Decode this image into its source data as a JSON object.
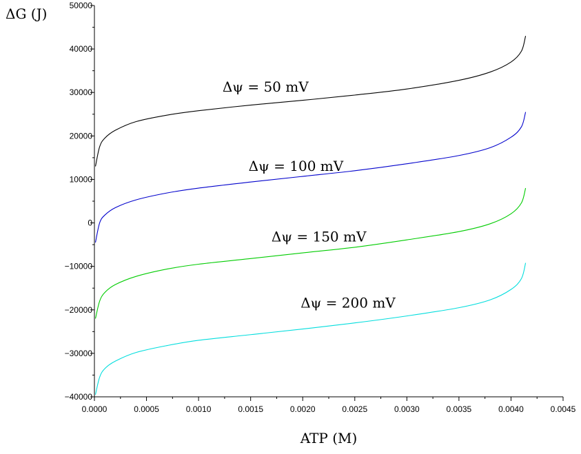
{
  "chart_data": {
    "type": "line",
    "xlabel": "ATP (M)",
    "ylabel": "ΔG (J)",
    "xlim": [
      0,
      0.0045
    ],
    "ylim": [
      -40000,
      50000
    ],
    "x_ticks": [
      0,
      0.0005,
      0.001,
      0.0015,
      0.002,
      0.0025,
      0.003,
      0.0035,
      0.004,
      0.0045
    ],
    "x_tick_labels": [
      "0.0000",
      "0.0005",
      "0.0010",
      "0.0015",
      "0.0020",
      "0.0025",
      "0.0030",
      "0.0035",
      "0.0040",
      "0.0045"
    ],
    "y_ticks": [
      -40000,
      -30000,
      -20000,
      -10000,
      0,
      10000,
      20000,
      30000,
      40000,
      50000
    ],
    "y_tick_labels": [
      "−40000",
      "−30000",
      "−20000",
      "−10000",
      "0",
      "10000",
      "20000",
      "30000",
      "40000",
      "50000"
    ],
    "grid": false,
    "series": [
      {
        "name": "Δψ = 50 mV",
        "color": "#000000",
        "x": [
          1e-05,
          5e-05,
          0.0001,
          0.0002,
          0.0004,
          0.0007,
          0.001,
          0.0015,
          0.002,
          0.0025,
          0.003,
          0.0035,
          0.0038,
          0.004,
          0.0041,
          0.00414
        ],
        "y": [
          13000,
          17500,
          19500,
          21300,
          23300,
          24800,
          25800,
          27100,
          28200,
          29400,
          30800,
          32800,
          34700,
          37000,
          39500,
          43000
        ]
      },
      {
        "name": "Δψ = 100 mV",
        "color": "#0000cc",
        "x": [
          1e-05,
          5e-05,
          0.0001,
          0.0002,
          0.0004,
          0.0007,
          0.001,
          0.0015,
          0.002,
          0.0025,
          0.003,
          0.0035,
          0.0038,
          0.004,
          0.0041,
          0.00414
        ],
        "y": [
          -4500,
          0,
          1800,
          3500,
          5300,
          6900,
          8000,
          9400,
          10700,
          12000,
          13600,
          15500,
          17300,
          19700,
          22100,
          25500
        ]
      },
      {
        "name": "Δψ = 150 mV",
        "color": "#00cc00",
        "x": [
          1e-05,
          5e-05,
          0.0001,
          0.0002,
          0.0004,
          0.0007,
          0.001,
          0.0015,
          0.002,
          0.0025,
          0.003,
          0.0035,
          0.0038,
          0.004,
          0.0041,
          0.00414
        ],
        "y": [
          -22000,
          -18000,
          -16000,
          -14200,
          -12300,
          -10600,
          -9500,
          -8200,
          -6900,
          -5600,
          -3900,
          -2000,
          -200,
          2100,
          4600,
          8000
        ]
      },
      {
        "name": "Δψ = 200 mV",
        "color": "#00dddd",
        "x": [
          1e-05,
          5e-05,
          0.0001,
          0.0002,
          0.0004,
          0.0007,
          0.001,
          0.0015,
          0.002,
          0.0025,
          0.003,
          0.0035,
          0.0038,
          0.004,
          0.0041,
          0.00414
        ],
        "y": [
          -39500,
          -35500,
          -33500,
          -31800,
          -29800,
          -28200,
          -27000,
          -25700,
          -24400,
          -23000,
          -21400,
          -19500,
          -17700,
          -15300,
          -12800,
          -9200
        ]
      }
    ]
  }
}
